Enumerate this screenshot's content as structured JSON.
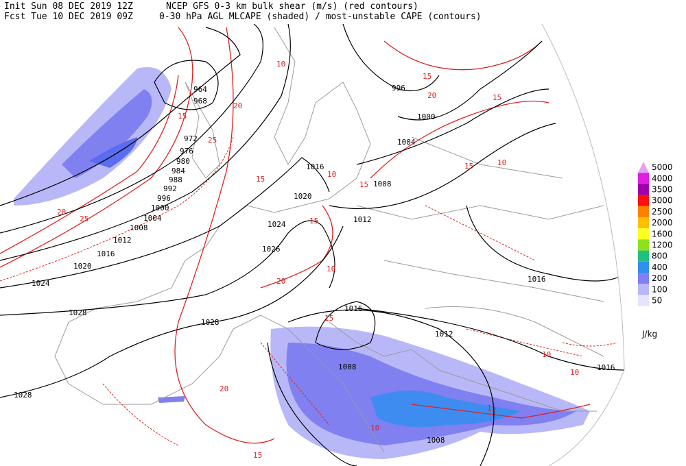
{
  "header": {
    "init": "Init  Sun 08 DEC 2019 12Z",
    "fcst": "Fcst Tue 10 DEC 2019 09Z",
    "product_1": "NCEP GFS 0-3 km bulk shear (m/s) (red contours)",
    "product_2": "0-30 hPa AGL MLCAPE (shaded) / most-unstable CAPE (contours)"
  },
  "legend": {
    "levels": [
      {
        "value": 5000,
        "color": "#e8a0f0"
      },
      {
        "value": 4000,
        "color": "#e020e0"
      },
      {
        "value": 3500,
        "color": "#a000a8"
      },
      {
        "value": 3000,
        "color": "#ff1010"
      },
      {
        "value": 2500,
        "color": "#ff8000"
      },
      {
        "value": 2000,
        "color": "#ffc000"
      },
      {
        "value": 1600,
        "color": "#ffff20"
      },
      {
        "value": 1200,
        "color": "#90e020"
      },
      {
        "value": 800,
        "color": "#20c080"
      },
      {
        "value": 400,
        "color": "#3090f0"
      },
      {
        "value": 200,
        "color": "#8080f0"
      },
      {
        "value": 100,
        "color": "#b8b8f8"
      },
      {
        "value": 50,
        "color": "#e4e4fc"
      }
    ],
    "unit": "J/kg"
  },
  "map": {
    "pressure_labels": [
      964,
      968,
      972,
      976,
      980,
      984,
      988,
      992,
      996,
      1000,
      1004,
      1008,
      1012,
      1016,
      1020,
      1024,
      1028,
      1028,
      1028,
      1026,
      1024,
      1020,
      1016,
      1012,
      1008,
      1004,
      1000,
      996,
      1016,
      1016,
      1016,
      1012,
      1008,
      1008
    ],
    "shear_labels": [
      10,
      15,
      20,
      25,
      15,
      20,
      25,
      10,
      15,
      10,
      15,
      20,
      15,
      20,
      15,
      10,
      15,
      10,
      15,
      15,
      10,
      20,
      15,
      10
    ]
  }
}
